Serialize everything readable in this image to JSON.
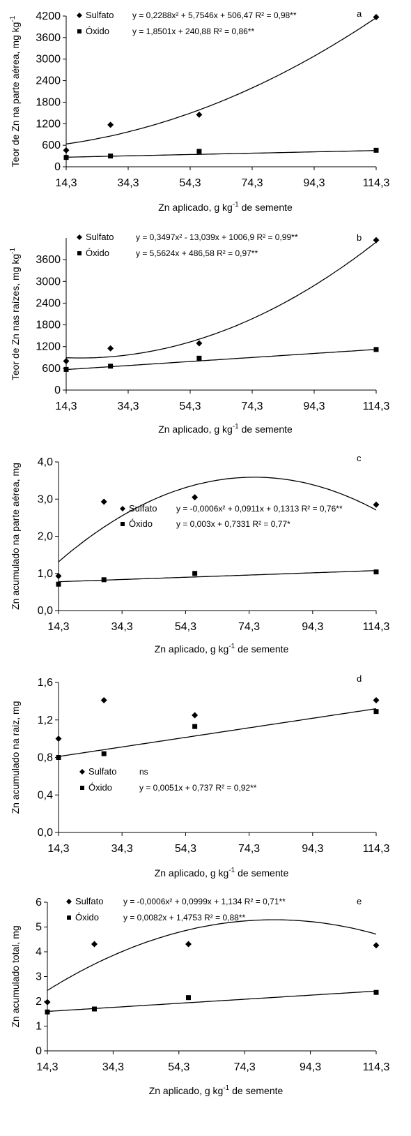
{
  "xlabel_main": "Zn aplicado, g kg",
  "xlabel_sup": "-1",
  "xlabel_tail": " de semente",
  "chart_data": [
    {
      "type": "scatter",
      "panel": "a",
      "ylabel_main": "Teor de Zn na parte aérea, mg kg",
      "ylabel_sup": "-1",
      "xlim": [
        14.3,
        114.3
      ],
      "ylim": [
        0,
        4200
      ],
      "xticks": [
        "14,3",
        "34,3",
        "54,3",
        "74,3",
        "94,3",
        "114,3"
      ],
      "yticks": [
        "0",
        "600",
        "1200",
        "1800",
        "2400",
        "3000",
        "3600",
        "4200"
      ],
      "series": [
        {
          "name": "Sulfato",
          "marker": "diamond",
          "x": [
            14.3,
            28.6,
            57.2,
            114.3
          ],
          "y": [
            460,
            1170,
            1450,
            4170
          ],
          "equation": "y = 0,2288x² + 5,7546x + 506,47",
          "r2": "R² = 0,98**"
        },
        {
          "name": "Óxido",
          "marker": "square",
          "x": [
            14.3,
            28.6,
            57.2,
            114.3
          ],
          "y": [
            260,
            300,
            430,
            460
          ],
          "equation": "y = 1,8501x + 240,88",
          "r2": "R² = 0,86**"
        }
      ]
    },
    {
      "type": "scatter",
      "panel": "b",
      "ylabel_main": "Teor de Zn nas raízes, mg kg",
      "ylabel_sup": "-1",
      "xlim": [
        14.3,
        114.3
      ],
      "ylim": [
        0,
        4200
      ],
      "xticks": [
        "14,3",
        "34,3",
        "54,3",
        "74,3",
        "94,3",
        "114,3"
      ],
      "yticks": [
        "0",
        "600",
        "1200",
        "1800",
        "2400",
        "3000",
        "3600"
      ],
      "series": [
        {
          "name": "Sulfato",
          "marker": "diamond",
          "x": [
            14.3,
            28.6,
            57.2,
            114.3
          ],
          "y": [
            800,
            1150,
            1290,
            4140
          ],
          "equation": "y = 0,3497x² - 13,039x + 1006,9",
          "r2": "R² = 0,99**"
        },
        {
          "name": "Óxido",
          "marker": "square",
          "x": [
            14.3,
            28.6,
            57.2,
            114.3
          ],
          "y": [
            570,
            660,
            880,
            1120
          ],
          "equation": "y = 5,5624x + 486,58",
          "r2": "R² = 0,97**"
        }
      ]
    },
    {
      "type": "scatter",
      "panel": "c",
      "ylabel_main": "Zn acumulado na parte aérea, mg",
      "xlim": [
        14.3,
        114.3
      ],
      "ylim": [
        0,
        4
      ],
      "xticks": [
        "14,3",
        "34,3",
        "54,3",
        "74,3",
        "94,3",
        "114,3"
      ],
      "yticks": [
        "0,0",
        "1,0",
        "2,0",
        "3,0",
        "4,0"
      ],
      "series": [
        {
          "name": "Sulfato",
          "marker": "diamond",
          "x": [
            14.3,
            28.6,
            57.2,
            114.3
          ],
          "y": [
            0.93,
            2.93,
            3.05,
            2.85
          ],
          "equation": "y = -0,0006x² + 0,0911x + 0,1313",
          "r2": "R² = 0,76**"
        },
        {
          "name": "Óxido",
          "marker": "square",
          "x": [
            14.3,
            28.6,
            57.2,
            114.3
          ],
          "y": [
            0.71,
            0.83,
            1.0,
            1.04
          ],
          "equation": "y = 0,003x + 0,7331",
          "r2": "R² = 0,77*"
        }
      ]
    },
    {
      "type": "scatter",
      "panel": "d",
      "ylabel_main": "Zn acumulado na raiz, mg",
      "xlim": [
        14.3,
        114.3
      ],
      "ylim": [
        0,
        1.6
      ],
      "xticks": [
        "14,3",
        "34,3",
        "54,3",
        "74,3",
        "94,3",
        "114,3"
      ],
      "yticks": [
        "0,0",
        "0,4",
        "0,8",
        "1,2",
        "1,6"
      ],
      "series": [
        {
          "name": "Sulfato",
          "marker": "diamond",
          "x": [
            14.3,
            28.6,
            57.2,
            114.3
          ],
          "y": [
            1.0,
            1.41,
            1.25,
            1.41
          ],
          "equation": "ns",
          "r2": ""
        },
        {
          "name": "Óxido",
          "marker": "square",
          "x": [
            14.3,
            28.6,
            57.2,
            114.3
          ],
          "y": [
            0.8,
            0.84,
            1.13,
            1.29
          ],
          "equation": "y = 0,0051x + 0,737",
          "r2": "R² = 0,92**"
        }
      ]
    },
    {
      "type": "scatter",
      "panel": "e",
      "ylabel_main": "Zn acumulado total, mg",
      "xlim": [
        14.3,
        114.3
      ],
      "ylim": [
        0,
        6
      ],
      "xticks": [
        "14,3",
        "34,3",
        "54,3",
        "74,3",
        "94,3",
        "114,3"
      ],
      "yticks": [
        "0",
        "1",
        "2",
        "3",
        "4",
        "5",
        "6"
      ],
      "series": [
        {
          "name": "Sulfato",
          "marker": "diamond",
          "x": [
            14.3,
            28.6,
            57.2,
            114.3
          ],
          "y": [
            1.97,
            4.31,
            4.31,
            4.26
          ],
          "equation": "y = -0,0006x² + 0,0999x + 1,134",
          "r2": "R² = 0,71**"
        },
        {
          "name": "Óxido",
          "marker": "square",
          "x": [
            14.3,
            28.6,
            57.2,
            114.3
          ],
          "y": [
            1.57,
            1.69,
            2.15,
            2.36
          ],
          "equation": "y = 0,0082x + 1,4753",
          "r2": "R² = 0,88**"
        }
      ]
    }
  ]
}
